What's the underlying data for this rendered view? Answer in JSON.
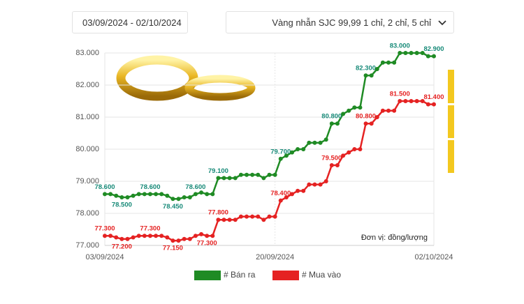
{
  "ui": {
    "date_range": "03/09/2024 - 02/10/2024",
    "product": "Vàng nhẫn SJC 99,99 1 chỉ, 2 chỉ, 5 chỉ"
  },
  "chart_data": {
    "type": "line",
    "categories": [
      "03/09/2024",
      null,
      null,
      null,
      null,
      null,
      null,
      null,
      null,
      null,
      null,
      null,
      null,
      null,
      null,
      null,
      null,
      null,
      null,
      null,
      null,
      null,
      null,
      null,
      null,
      null,
      null,
      null,
      null,
      null,
      "20/09/2024",
      null,
      null,
      null,
      null,
      null,
      null,
      null,
      null,
      null,
      null,
      null,
      null,
      null,
      null,
      null,
      null,
      null,
      null,
      null,
      null,
      null,
      null,
      null,
      null,
      null,
      null,
      null,
      "02/10/2024"
    ],
    "series": [
      {
        "name": "# Bán ra",
        "color": "#1f8b24",
        "label_color": "#178a78",
        "values": [
          78.6,
          78.6,
          78.55,
          78.5,
          78.5,
          78.55,
          78.6,
          78.6,
          78.6,
          78.6,
          78.6,
          78.55,
          78.45,
          78.45,
          78.5,
          78.5,
          78.6,
          78.65,
          78.6,
          78.6,
          79.1,
          79.1,
          79.1,
          79.1,
          79.2,
          79.2,
          79.2,
          79.2,
          79.1,
          79.2,
          79.2,
          79.7,
          79.8,
          79.9,
          80.0,
          80.0,
          80.2,
          80.2,
          80.2,
          80.3,
          80.8,
          80.8,
          81.1,
          81.2,
          81.3,
          81.3,
          82.3,
          82.3,
          82.5,
          82.7,
          82.7,
          82.7,
          83.0,
          83.0,
          83.0,
          83.0,
          83.0,
          82.9,
          82.9
        ],
        "value_labels": [
          "78.600",
          null,
          null,
          "78.500",
          null,
          null,
          null,
          null,
          "78.600",
          null,
          null,
          null,
          "78.450",
          null,
          null,
          null,
          "78.600",
          null,
          null,
          null,
          "79.100",
          null,
          null,
          null,
          null,
          null,
          null,
          null,
          null,
          null,
          null,
          "79.700",
          null,
          null,
          null,
          null,
          null,
          null,
          null,
          null,
          "80.800",
          null,
          null,
          null,
          null,
          null,
          "82.300",
          null,
          null,
          null,
          null,
          null,
          "83.000",
          null,
          null,
          null,
          null,
          null,
          "82.900"
        ]
      },
      {
        "name": "# Mua vào",
        "color": "#e52222",
        "label_color": "#e52222",
        "values": [
          77.3,
          77.3,
          77.25,
          77.2,
          77.2,
          77.25,
          77.3,
          77.3,
          77.3,
          77.3,
          77.3,
          77.25,
          77.15,
          77.15,
          77.2,
          77.2,
          77.3,
          77.35,
          77.3,
          77.3,
          77.8,
          77.8,
          77.8,
          77.8,
          77.9,
          77.9,
          77.9,
          77.9,
          77.8,
          77.9,
          77.9,
          78.4,
          78.5,
          78.6,
          78.7,
          78.7,
          78.9,
          78.9,
          78.9,
          79.0,
          79.5,
          79.5,
          79.8,
          79.9,
          80.0,
          80.0,
          80.8,
          80.8,
          81.0,
          81.2,
          81.2,
          81.2,
          81.5,
          81.5,
          81.5,
          81.5,
          81.5,
          81.4,
          81.4
        ],
        "value_labels": [
          "77.300",
          null,
          null,
          "77.200",
          null,
          null,
          null,
          null,
          "77.300",
          null,
          null,
          null,
          "77.150",
          null,
          null,
          null,
          null,
          null,
          "77.300",
          null,
          "77.800",
          null,
          null,
          null,
          null,
          null,
          null,
          null,
          null,
          null,
          null,
          "78.400",
          null,
          null,
          null,
          null,
          null,
          null,
          null,
          null,
          "79.500",
          null,
          null,
          null,
          null,
          null,
          "80.800",
          null,
          null,
          null,
          null,
          null,
          "81.500",
          null,
          null,
          null,
          null,
          null,
          "81.400"
        ]
      }
    ],
    "ylim": [
      77,
      83
    ],
    "yticks": [
      {
        "value": 77,
        "label": "77.000"
      },
      {
        "value": 78,
        "label": "78.000"
      },
      {
        "value": 79,
        "label": "79.000"
      },
      {
        "value": 80,
        "label": "80.000"
      },
      {
        "value": 81,
        "label": "81.000"
      },
      {
        "value": 82,
        "label": "82.000"
      },
      {
        "value": 83,
        "label": "83.000"
      }
    ],
    "annotation": "Đơn vị: đồng/lượng",
    "grid": true
  }
}
